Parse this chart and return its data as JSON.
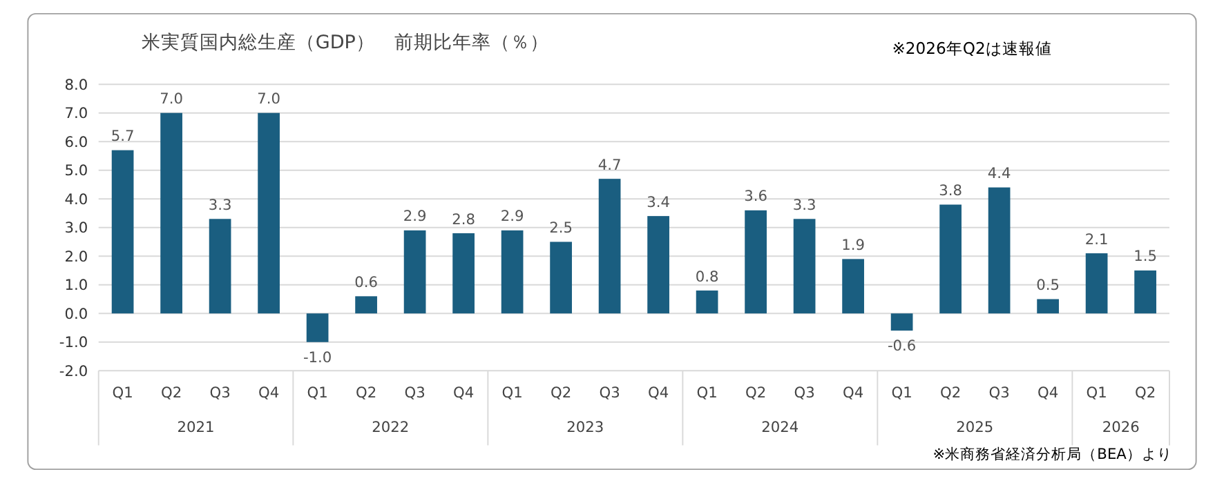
{
  "chart_data": {
    "type": "bar",
    "title": "米実質国内総生産（GDP）　前期比年率（％）",
    "categories": [
      "Q1",
      "Q2",
      "Q3",
      "Q4",
      "Q1",
      "Q2",
      "Q3",
      "Q4",
      "Q1",
      "Q2",
      "Q3",
      "Q4",
      "Q1",
      "Q2",
      "Q3",
      "Q4",
      "Q1",
      "Q2",
      "Q3",
      "Q4",
      "Q1",
      "Q2"
    ],
    "values": [
      5.7,
      7.0,
      3.3,
      7.0,
      -1.0,
      0.6,
      2.9,
      2.8,
      2.9,
      2.5,
      4.7,
      3.4,
      0.8,
      3.6,
      3.3,
      1.9,
      -0.6,
      3.8,
      4.4,
      0.5,
      2.1,
      1.5
    ],
    "value_labels": [
      "5.7",
      "7.0",
      "3.3",
      "7.0",
      "-1.0",
      "0.6",
      "2.9",
      "2.8",
      "2.9",
      "2.5",
      "4.7",
      "3.4",
      "0.8",
      "3.6",
      "3.3",
      "1.9",
      "-0.6",
      "3.8",
      "4.4",
      "0.5",
      "2.1",
      "1.5"
    ],
    "color": "#1a5e80",
    "ylim": [
      -2,
      8
    ],
    "yticks": [
      {
        "value": -2,
        "label": "-2.0"
      },
      {
        "value": -1,
        "label": "-1.0"
      },
      {
        "value": 0,
        "label": "0.0"
      },
      {
        "value": 1,
        "label": "1.0"
      },
      {
        "value": 2,
        "label": "2.0"
      },
      {
        "value": 3,
        "label": "3.0"
      },
      {
        "value": 4,
        "label": "4.0"
      },
      {
        "value": 5,
        "label": "5.0"
      },
      {
        "value": 6,
        "label": "6.0"
      },
      {
        "value": 7,
        "label": "7.0"
      },
      {
        "value": 8,
        "label": "8.0"
      }
    ],
    "grid": "y",
    "annotations": [
      "2021",
      "2022",
      "2023",
      "2024",
      "2025",
      "2026",
      "※2026年Q2は速報値",
      "※米商務省経済分析局（BEA）より"
    ]
  }
}
